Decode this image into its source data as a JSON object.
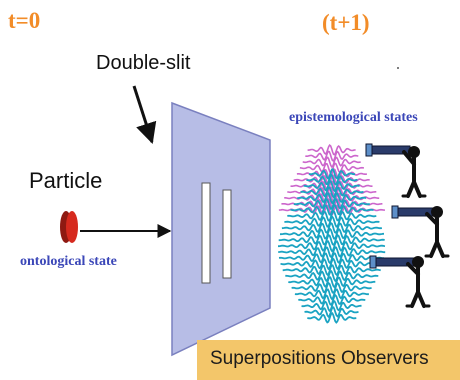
{
  "labels": {
    "t0": "t=0",
    "t1": "(t+1)",
    "double_slit": "Double-slit",
    "particle": "Particle",
    "ontological": "ontological state",
    "epistemological": "epistemological states",
    "caption": "Superpositions Observers"
  },
  "colors": {
    "time_label": "#f28c28",
    "state_label": "#3b47b8",
    "panel_face": "#b7bde6",
    "panel_edge": "#7a80bf",
    "particle": "#d62a1e",
    "wave_front": "#1aa3c2",
    "wave_back": "#cc66cc",
    "caption_bg": "#f3c66a"
  },
  "icons": {
    "particle": "particle-disc-icon",
    "observer": "telescope-observer-icon"
  }
}
